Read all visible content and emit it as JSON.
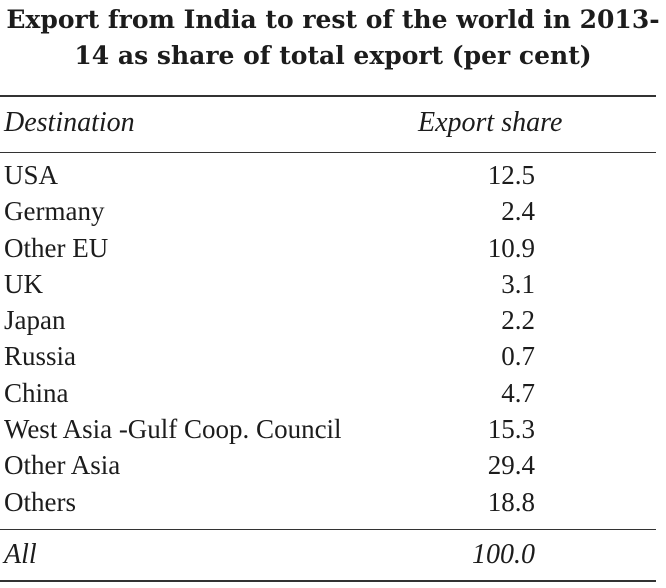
{
  "title": "Export from India to rest of the world in 2013-14 as share of total export (per cent)",
  "columns": {
    "destination": "Destination",
    "share": "Export share"
  },
  "rows": [
    {
      "destination": "USA",
      "share": "12.5"
    },
    {
      "destination": "Germany",
      "share": "2.4"
    },
    {
      "destination": "Other EU",
      "share": "10.9"
    },
    {
      "destination": "UK",
      "share": "3.1"
    },
    {
      "destination": "Japan",
      "share": "2.2"
    },
    {
      "destination": "Russia",
      "share": "0.7"
    },
    {
      "destination": "China",
      "share": "4.7"
    },
    {
      "destination": "West Asia -Gulf Coop. Council",
      "share": "15.3"
    },
    {
      "destination": "Other Asia",
      "share": "29.4"
    },
    {
      "destination": "Others",
      "share": "18.8"
    }
  ],
  "total": {
    "destination": "All",
    "share": "100.0"
  }
}
